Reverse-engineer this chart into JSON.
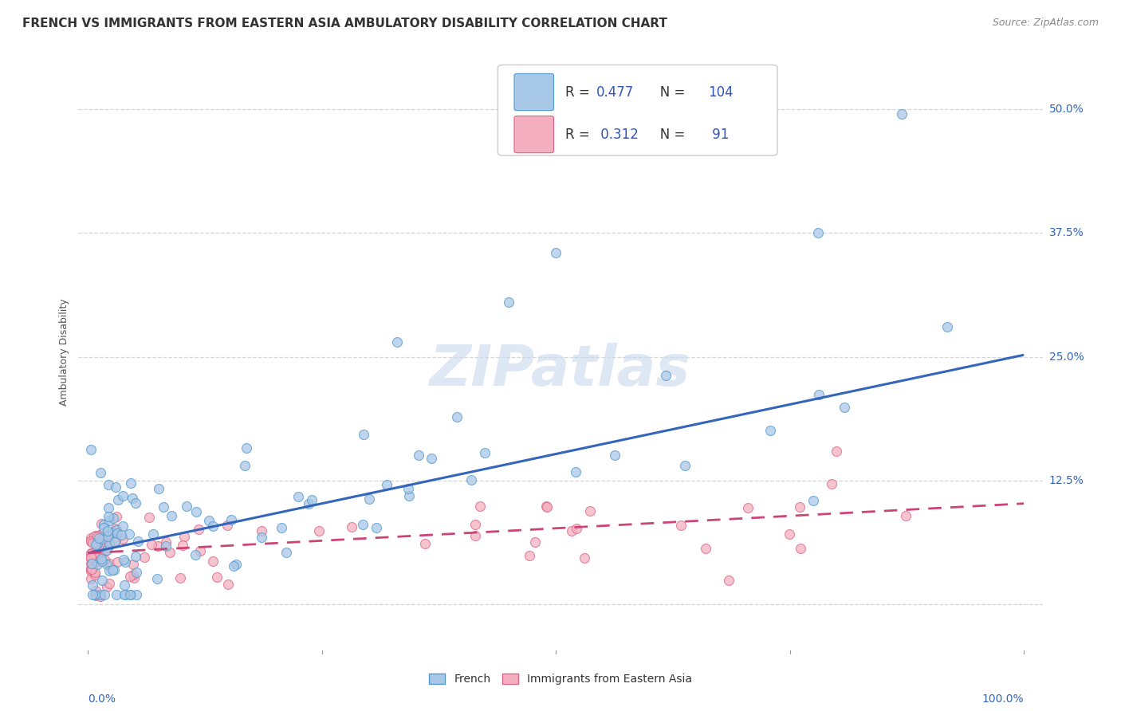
{
  "title": "FRENCH VS IMMIGRANTS FROM EASTERN ASIA AMBULATORY DISABILITY CORRELATION CHART",
  "source": "Source: ZipAtlas.com",
  "ylabel": "Ambulatory Disability",
  "background_color": "#ffffff",
  "grid_color": "#cccccc",
  "watermark": "ZIPatlas",
  "french_color": "#a8c8e8",
  "french_edge_color": "#5599cc",
  "french_line_color": "#3366bb",
  "french_label": "French",
  "french_R": 0.477,
  "french_N": 104,
  "eastern_color": "#f4b0c0",
  "eastern_edge_color": "#dd6688",
  "eastern_line_color": "#cc4477",
  "eastern_label": "Immigrants from Eastern Asia",
  "eastern_R": 0.312,
  "eastern_N": 91,
  "legend_text_color": "#3355bb",
  "legend_label_color": "#333333",
  "xlim": [
    -0.01,
    1.02
  ],
  "ylim": [
    -0.05,
    0.56
  ],
  "yticks": [
    0.0,
    0.125,
    0.25,
    0.375,
    0.5
  ],
  "ytick_labels": [
    "",
    "12.5%",
    "25.0%",
    "37.5%",
    "50.0%"
  ],
  "title_fontsize": 11,
  "source_fontsize": 9,
  "ylabel_fontsize": 9,
  "tick_fontsize": 10,
  "legend_fontsize": 12,
  "watermark_fontsize": 52,
  "watermark_color": "#c8d8ee",
  "watermark_alpha": 0.6,
  "french_trend_x0": 0.0,
  "french_trend_y0": 0.052,
  "french_trend_x1": 1.0,
  "french_trend_y1": 0.252,
  "eastern_trend_x0": 0.0,
  "eastern_trend_y0": 0.052,
  "eastern_trend_x1": 1.0,
  "eastern_trend_y1": 0.102
}
